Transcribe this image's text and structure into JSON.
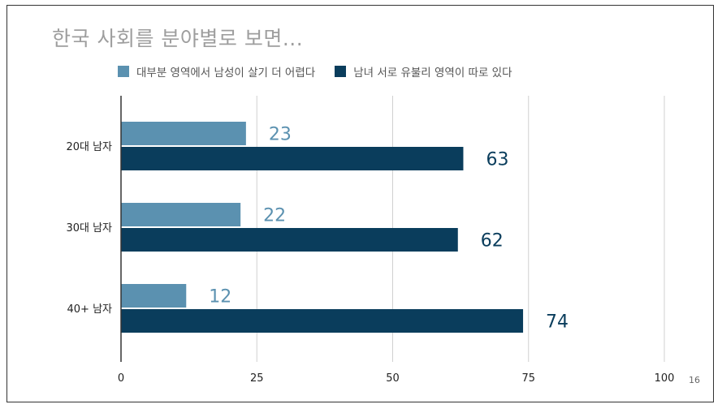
{
  "page": {
    "number": "16"
  },
  "chart_data": {
    "type": "bar",
    "orientation": "horizontal",
    "title": "한국 사회를 분야별로 보면...",
    "categories": [
      "20대 남자",
      "30대 남자",
      "40+ 남자"
    ],
    "series": [
      {
        "name": "대부분 영역에서 남성이 살기 더 어렵다",
        "values": [
          23,
          22,
          12
        ],
        "color": "#5b91b0"
      },
      {
        "name": "남녀 서로 유불리 영역이 따로 있다",
        "values": [
          63,
          62,
          74
        ],
        "color": "#0a3d5c"
      }
    ],
    "xlim": [
      0,
      100
    ],
    "xticks": [
      0,
      25,
      50,
      75,
      100
    ],
    "grid": true,
    "legend": "top",
    "data_labels": true
  }
}
